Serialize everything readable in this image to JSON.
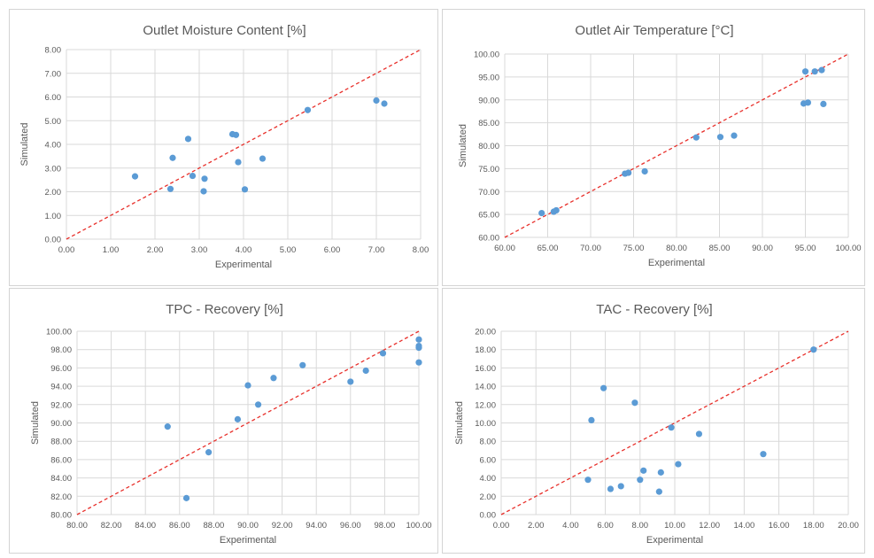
{
  "chart_data": [
    {
      "type": "scatter",
      "title": "Outlet Moisture Content [%]",
      "xlabel": "Experimental",
      "ylabel": "Simulated",
      "xlim": [
        0,
        8
      ],
      "ylim": [
        0,
        8
      ],
      "xticks": [
        "0.00",
        "1.00",
        "2.00",
        "3.00",
        "4.00",
        "5.00",
        "6.00",
        "7.00",
        "8.00"
      ],
      "yticks": [
        "0.00",
        "1.00",
        "2.00",
        "3.00",
        "4.00",
        "5.00",
        "6.00",
        "7.00",
        "8.00"
      ],
      "reference_line": "y = x",
      "point_color": "#5b9bd5",
      "line_color": "#e8302b",
      "grid": true,
      "points": [
        [
          1.55,
          2.65
        ],
        [
          2.35,
          2.12
        ],
        [
          2.4,
          3.43
        ],
        [
          2.75,
          4.23
        ],
        [
          2.85,
          2.67
        ],
        [
          3.1,
          2.02
        ],
        [
          3.12,
          2.55
        ],
        [
          3.75,
          4.43
        ],
        [
          3.83,
          4.4
        ],
        [
          3.88,
          3.25
        ],
        [
          4.03,
          2.1
        ],
        [
          4.43,
          3.4
        ],
        [
          5.45,
          5.45
        ],
        [
          7.0,
          5.85
        ],
        [
          7.18,
          5.72
        ]
      ]
    },
    {
      "type": "scatter",
      "title": "Outlet Air Temperature [°C]",
      "xlabel": "Experimental",
      "ylabel": "Simulated",
      "xlim": [
        60,
        100
      ],
      "ylim": [
        60,
        100
      ],
      "xticks": [
        "60.00",
        "65.00",
        "70.00",
        "75.00",
        "80.00",
        "85.00",
        "90.00",
        "95.00",
        "100.00"
      ],
      "yticks": [
        "60.00",
        "65.00",
        "70.00",
        "75.00",
        "80.00",
        "85.00",
        "90.00",
        "95.00",
        "100.00"
      ],
      "reference_line": "y = x",
      "point_color": "#5b9bd5",
      "line_color": "#e8302b",
      "grid": true,
      "points": [
        [
          64.3,
          65.3
        ],
        [
          65.7,
          65.6
        ],
        [
          66.0,
          65.9
        ],
        [
          74.0,
          73.9
        ],
        [
          74.4,
          74.1
        ],
        [
          76.3,
          74.4
        ],
        [
          82.3,
          81.8
        ],
        [
          85.1,
          81.9
        ],
        [
          86.7,
          82.2
        ],
        [
          94.8,
          89.2
        ],
        [
          95.0,
          96.2
        ],
        [
          95.3,
          89.4
        ],
        [
          96.1,
          96.2
        ],
        [
          96.9,
          96.5
        ],
        [
          97.1,
          89.1
        ]
      ]
    },
    {
      "type": "scatter",
      "title": "TPC - Recovery [%]",
      "xlabel": "Experimental",
      "ylabel": "Simulated",
      "xlim": [
        80,
        100
      ],
      "ylim": [
        80,
        100
      ],
      "xticks": [
        "80.00",
        "82.00",
        "84.00",
        "86.00",
        "88.00",
        "90.00",
        "92.00",
        "94.00",
        "96.00",
        "98.00",
        "100.00"
      ],
      "yticks": [
        "80.00",
        "82.00",
        "84.00",
        "86.00",
        "88.00",
        "90.00",
        "92.00",
        "94.00",
        "96.00",
        "98.00",
        "100.00"
      ],
      "reference_line": "y = x",
      "point_color": "#5b9bd5",
      "line_color": "#e8302b",
      "grid": true,
      "points": [
        [
          85.3,
          89.6
        ],
        [
          86.4,
          81.8
        ],
        [
          87.7,
          86.8
        ],
        [
          89.4,
          90.4
        ],
        [
          90.0,
          94.1
        ],
        [
          90.6,
          92.0
        ],
        [
          91.5,
          94.9
        ],
        [
          93.2,
          96.3
        ],
        [
          96.0,
          94.5
        ],
        [
          96.9,
          95.7
        ],
        [
          97.9,
          97.6
        ],
        [
          100.0,
          99.1
        ],
        [
          100.0,
          98.4
        ],
        [
          100.0,
          98.2
        ],
        [
          100.0,
          96.6
        ]
      ]
    },
    {
      "type": "scatter",
      "title": "TAC - Recovery [%]",
      "xlabel": "Experimental",
      "ylabel": "Simulated",
      "xlim": [
        0,
        20
      ],
      "ylim": [
        0,
        20
      ],
      "xticks": [
        "0.00",
        "2.00",
        "4.00",
        "6.00",
        "8.00",
        "10.00",
        "12.00",
        "14.00",
        "16.00",
        "18.00",
        "20.00"
      ],
      "yticks": [
        "0.00",
        "2.00",
        "4.00",
        "6.00",
        "8.00",
        "10.00",
        "12.00",
        "14.00",
        "16.00",
        "18.00",
        "20.00"
      ],
      "reference_line": "y = x",
      "point_color": "#5b9bd5",
      "line_color": "#e8302b",
      "grid": true,
      "points": [
        [
          5.0,
          3.8
        ],
        [
          5.2,
          10.3
        ],
        [
          5.9,
          13.8
        ],
        [
          6.3,
          2.8
        ],
        [
          6.9,
          3.1
        ],
        [
          7.7,
          12.2
        ],
        [
          8.0,
          3.8
        ],
        [
          8.2,
          4.8
        ],
        [
          9.1,
          2.5
        ],
        [
          9.2,
          4.6
        ],
        [
          9.8,
          9.5
        ],
        [
          10.2,
          5.5
        ],
        [
          11.4,
          8.8
        ],
        [
          15.1,
          6.6
        ],
        [
          18.0,
          18.0
        ]
      ]
    }
  ]
}
